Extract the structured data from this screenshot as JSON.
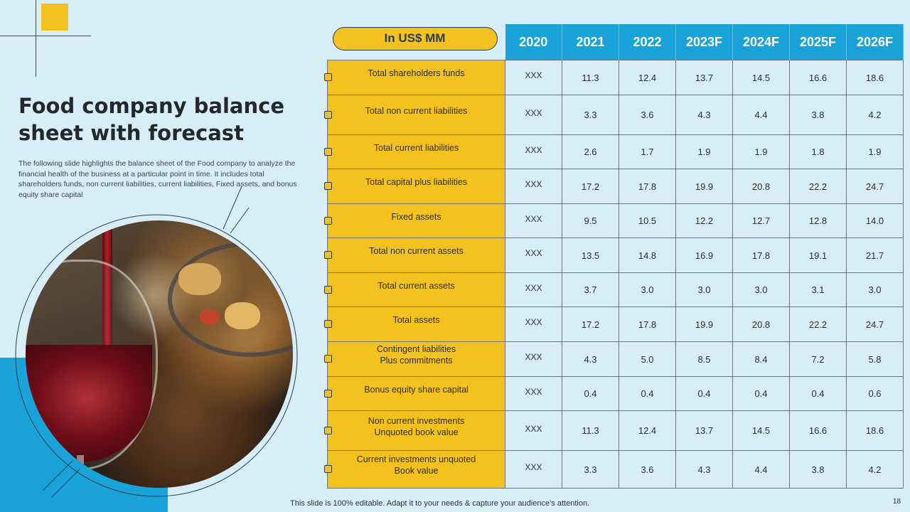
{
  "slide": {
    "title": "Food company balance sheet with forecast",
    "description": "The following slide highlights the balance sheet of the Food company to analyze the financial health of the business at a particular point in time. It includes total shareholders funds, non current liabilities, current liabilities, Fixed assets, and bonus equity share capital",
    "footer": "This slide is 100% editable. Adapt it to your needs & capture your audience’s attention.",
    "page_number": "18"
  },
  "colors": {
    "yellow": "#f4c21f",
    "blue": "#1aa3d8",
    "light_blue": "#d7eef8",
    "dark": "#2d3e49"
  },
  "table": {
    "header_label": "In US$ MM",
    "years": [
      "2020",
      "2021",
      "2022",
      "2023F",
      "2024F",
      "2025F",
      "2026F"
    ],
    "rows": [
      {
        "label": "Total shareholders funds",
        "values": [
          "XXX",
          "11.3",
          "12.4",
          "13.7",
          "14.5",
          "16.6",
          "18.6"
        ]
      },
      {
        "label": "Total non current liabilities",
        "values": [
          "XXX",
          "3.3",
          "3.6",
          "4.3",
          "4.4",
          "3.8",
          "4.2"
        ]
      },
      {
        "label": "Total current liabilities",
        "values": [
          "XXX",
          "2.6",
          "1.7",
          "1.9",
          "1.9",
          "1.8",
          "1.9"
        ]
      },
      {
        "label": "Total capital plus liabilities",
        "values": [
          "XXX",
          "17.2",
          "17.8",
          "19.9",
          "20.8",
          "22.2",
          "24.7"
        ]
      },
      {
        "label": "Fixed assets",
        "values": [
          "XXX",
          "9.5",
          "10.5",
          "12.2",
          "12.7",
          "12.8",
          "14.0"
        ]
      },
      {
        "label": "Total non current assets",
        "values": [
          "XXX",
          "13.5",
          "14.8",
          "16.9",
          "17.8",
          "19.1",
          "21.7"
        ]
      },
      {
        "label": "Total current assets",
        "values": [
          "XXX",
          "3.7",
          "3.0",
          "3.0",
          "3.0",
          "3.1",
          "3.0"
        ]
      },
      {
        "label": "Total assets",
        "values": [
          "XXX",
          "17.2",
          "17.8",
          "19.9",
          "20.8",
          "22.2",
          "24.7"
        ]
      },
      {
        "label": "Contingent liabilities\nPlus commitments",
        "values": [
          "XXX",
          "4.3",
          "5.0",
          "8.5",
          "8.4",
          "7.2",
          "5.8"
        ]
      },
      {
        "label": "Bonus equity share capital",
        "values": [
          "XXX",
          "0.4",
          "0.4",
          "0.4",
          "0.4",
          "0.4",
          "0.6"
        ]
      },
      {
        "label": "Non current investments\nUnquoted book value",
        "values": [
          "XXX",
          "11.3",
          "12.4",
          "13.7",
          "14.5",
          "16.6",
          "18.6"
        ]
      },
      {
        "label": "Current investments unquoted\nBook value",
        "values": [
          "XXX",
          "3.3",
          "3.6",
          "4.3",
          "4.4",
          "3.8",
          "4.2"
        ]
      }
    ]
  }
}
